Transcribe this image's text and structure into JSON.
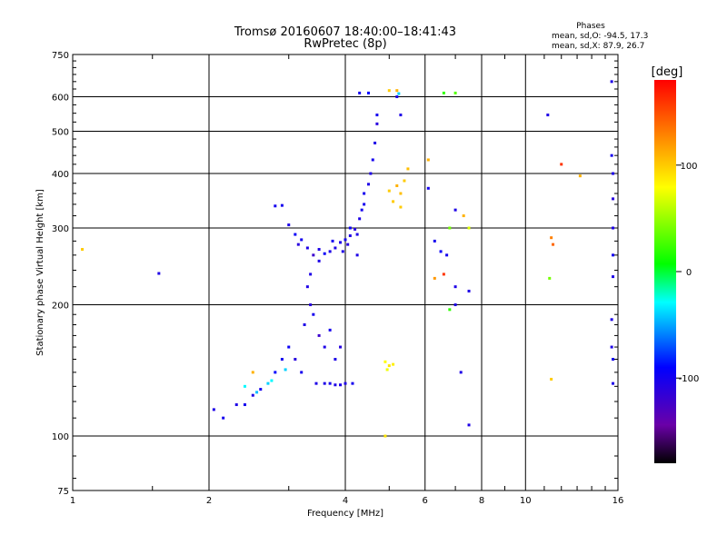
{
  "chart_data": {
    "type": "scatter",
    "title": "Tromsø 20160607 18:40:00–18:41:43",
    "subtitle": "RwPretec (8p)",
    "xlabel": "Frequency [MHz]",
    "ylabel": "Stationary phase Virtual Height [km]",
    "x_scale": "log",
    "y_scale": "log",
    "xlim": [
      1,
      16
    ],
    "ylim": [
      75,
      750
    ],
    "x_ticks": [
      1,
      2,
      4,
      6,
      8,
      10,
      16
    ],
    "y_ticks": [
      75,
      100,
      200,
      300,
      400,
      500,
      600,
      750
    ],
    "grid": true,
    "phase_header": "Phases",
    "phase_stats": [
      "mean, sd,O: -94.5, 17.3",
      "mean, sd,X:  87.9, 26.7"
    ],
    "colorbar": {
      "label": "[deg]",
      "ticks": [
        100,
        0,
        -100
      ],
      "range": [
        -180,
        180
      ],
      "colors": [
        "#000000",
        "#6a00a8",
        "#0000ff",
        "#00ffff",
        "#00ff00",
        "#ffff00",
        "#ff8000",
        "#ff0000"
      ]
    },
    "series": [
      {
        "points": [
          [
            3.8,
            270,
            -105
          ],
          [
            3.9,
            278,
            -105
          ],
          [
            4.0,
            282,
            -100
          ],
          [
            4.1,
            288,
            -105
          ],
          [
            4.2,
            298,
            -110
          ],
          [
            4.3,
            315,
            -105
          ],
          [
            4.4,
            340,
            -100
          ],
          [
            4.5,
            378,
            -105
          ],
          [
            4.6,
            430,
            -100
          ],
          [
            4.65,
            470,
            -105
          ],
          [
            4.7,
            520,
            -110
          ],
          [
            4.7,
            545,
            -100
          ],
          [
            3.6,
            262,
            -95
          ],
          [
            3.5,
            268,
            -105
          ],
          [
            3.4,
            260,
            -120
          ],
          [
            3.3,
            270,
            -105
          ],
          [
            3.2,
            282,
            -100
          ],
          [
            3.15,
            275,
            -110
          ],
          [
            3.1,
            290,
            -95
          ],
          [
            3.0,
            305,
            -105
          ],
          [
            2.9,
            338,
            -100
          ],
          [
            3.7,
            265,
            -105
          ],
          [
            3.75,
            280,
            -100
          ],
          [
            4.05,
            275,
            -110
          ],
          [
            4.25,
            290,
            -105
          ],
          [
            4.35,
            330,
            -100
          ],
          [
            4.55,
            400,
            -105
          ],
          [
            4.1,
            300,
            -95
          ],
          [
            3.95,
            265,
            -105
          ],
          [
            4.4,
            360,
            -100
          ],
          [
            3.25,
            180,
            -105
          ],
          [
            3.35,
            200,
            -110
          ],
          [
            3.3,
            220,
            -105
          ],
          [
            3.4,
            190,
            -100
          ],
          [
            3.5,
            170,
            -120
          ],
          [
            3.6,
            160,
            -105
          ],
          [
            3.7,
            175,
            -100
          ],
          [
            3.8,
            150,
            -105
          ],
          [
            3.9,
            160,
            -110
          ],
          [
            3.0,
            160,
            -95
          ],
          [
            2.9,
            150,
            -100
          ],
          [
            2.8,
            140,
            -90
          ],
          [
            2.7,
            132,
            -40
          ],
          [
            2.6,
            128,
            -100
          ],
          [
            2.5,
            124,
            -105
          ],
          [
            2.4,
            118,
            -100
          ],
          [
            2.3,
            118,
            -105
          ],
          [
            2.15,
            110,
            -100
          ],
          [
            3.45,
            132,
            -105
          ],
          [
            3.6,
            132,
            -105
          ],
          [
            3.7,
            132,
            -100
          ],
          [
            3.8,
            131,
            -105
          ],
          [
            3.9,
            131,
            -105
          ],
          [
            4.0,
            132,
            -105
          ],
          [
            4.15,
            132,
            -100
          ],
          [
            3.2,
            140,
            -100
          ],
          [
            3.1,
            150,
            -110
          ],
          [
            2.95,
            142,
            -40
          ],
          [
            2.75,
            134,
            -30
          ],
          [
            2.55,
            126,
            -45
          ],
          [
            4.3,
            612,
            -100
          ],
          [
            4.5,
            612,
            -90
          ],
          [
            5.2,
            600,
            -105
          ],
          [
            5.25,
            610,
            -40
          ],
          [
            5.3,
            545,
            -105
          ],
          [
            6.1,
            370,
            -100
          ],
          [
            5.0,
            365,
            100
          ],
          [
            5.1,
            345,
            100
          ],
          [
            5.2,
            375,
            110
          ],
          [
            5.3,
            360,
            105
          ],
          [
            5.4,
            385,
            100
          ],
          [
            5.5,
            410,
            105
          ],
          [
            5.3,
            335,
            100
          ],
          [
            5.0,
            620,
            100
          ],
          [
            5.2,
            620,
            110
          ],
          [
            4.9,
            148,
            80
          ],
          [
            5.0,
            145,
            90
          ],
          [
            5.1,
            146,
            85
          ],
          [
            4.95,
            142,
            75
          ],
          [
            6.1,
            430,
            110
          ],
          [
            6.3,
            280,
            -100
          ],
          [
            6.5,
            265,
            -95
          ],
          [
            6.7,
            260,
            -100
          ],
          [
            6.8,
            300,
            40
          ],
          [
            7.0,
            330,
            -105
          ],
          [
            6.3,
            230,
            120
          ],
          [
            6.6,
            235,
            160
          ],
          [
            7.0,
            220,
            -105
          ],
          [
            7.5,
            215,
            -105
          ],
          [
            7.0,
            200,
            -105
          ],
          [
            6.8,
            195,
            20
          ],
          [
            7.2,
            140,
            -105
          ],
          [
            7.5,
            106,
            -105
          ],
          [
            6.6,
            612,
            20
          ],
          [
            7.0,
            612,
            30
          ],
          [
            7.3,
            320,
            110
          ],
          [
            7.5,
            300,
            70
          ],
          [
            11.2,
            545,
            -105
          ],
          [
            11.4,
            285,
            130
          ],
          [
            11.5,
            275,
            140
          ],
          [
            12.0,
            420,
            160
          ],
          [
            13.2,
            395,
            110
          ],
          [
            11.3,
            230,
            40
          ],
          [
            11.4,
            135,
            100
          ],
          [
            15.5,
            440,
            -100
          ],
          [
            15.6,
            400,
            -105
          ],
          [
            15.6,
            350,
            -110
          ],
          [
            15.6,
            300,
            -105
          ],
          [
            15.6,
            260,
            -100
          ],
          [
            15.6,
            232,
            -105
          ],
          [
            15.5,
            185,
            -105
          ],
          [
            15.5,
            160,
            -105
          ],
          [
            15.6,
            132,
            -105
          ],
          [
            15.5,
            650,
            -105
          ],
          [
            15.6,
            150,
            -100
          ],
          [
            1.55,
            236,
            -105
          ],
          [
            2.8,
            337,
            -100
          ],
          [
            4.9,
            100,
            90
          ],
          [
            1.05,
            268,
            100
          ],
          [
            2.05,
            115,
            -105
          ],
          [
            2.5,
            140,
            110
          ],
          [
            2.4,
            130,
            -30
          ],
          [
            3.35,
            235,
            -105
          ],
          [
            3.5,
            252,
            -105
          ],
          [
            4.25,
            260,
            -105
          ]
        ]
      }
    ]
  }
}
